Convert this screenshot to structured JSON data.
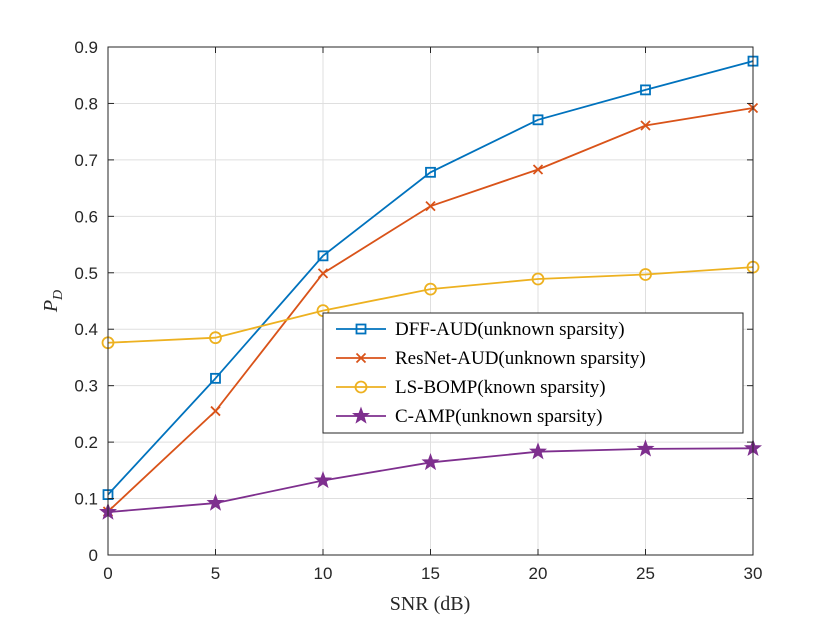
{
  "chart_data": {
    "type": "line",
    "xlabel": "SNR (dB)",
    "ylabel": "P",
    "ylabel_subscript": "D",
    "xlim": [
      0,
      30
    ],
    "ylim": [
      0,
      0.9
    ],
    "xticks": [
      0,
      5,
      10,
      15,
      20,
      25,
      30
    ],
    "yticks": [
      0,
      0.1,
      0.2,
      0.3,
      0.4,
      0.5,
      0.6,
      0.7,
      0.8,
      0.9
    ],
    "xtick_labels": [
      "0",
      "5",
      "10",
      "15",
      "20",
      "25",
      "30"
    ],
    "ytick_labels": [
      "0",
      "0.1",
      "0.2",
      "0.3",
      "0.4",
      "0.5",
      "0.6",
      "0.7",
      "0.8",
      "0.9"
    ],
    "grid": true,
    "legend_position": "center-right",
    "x": [
      0,
      5,
      10,
      15,
      20,
      25,
      30
    ],
    "series": [
      {
        "name": "DFF-AUD(unknown sparsity)",
        "color": "#0072BD",
        "marker": "square",
        "values": [
          0.107,
          0.313,
          0.53,
          0.678,
          0.771,
          0.824,
          0.875
        ]
      },
      {
        "name": "ResNet-AUD(unknown sparsity)",
        "color": "#D95319",
        "marker": "x",
        "values": [
          0.077,
          0.255,
          0.499,
          0.618,
          0.683,
          0.761,
          0.792
        ]
      },
      {
        "name": "LS-BOMP(known sparsity)",
        "color": "#EDB120",
        "marker": "circle",
        "values": [
          0.376,
          0.385,
          0.433,
          0.471,
          0.489,
          0.497,
          0.51
        ]
      },
      {
        "name": "C-AMP(unknown sparsity)",
        "color": "#7E2F8E",
        "marker": "star",
        "values": [
          0.076,
          0.092,
          0.132,
          0.164,
          0.183,
          0.188,
          0.189
        ]
      }
    ]
  }
}
